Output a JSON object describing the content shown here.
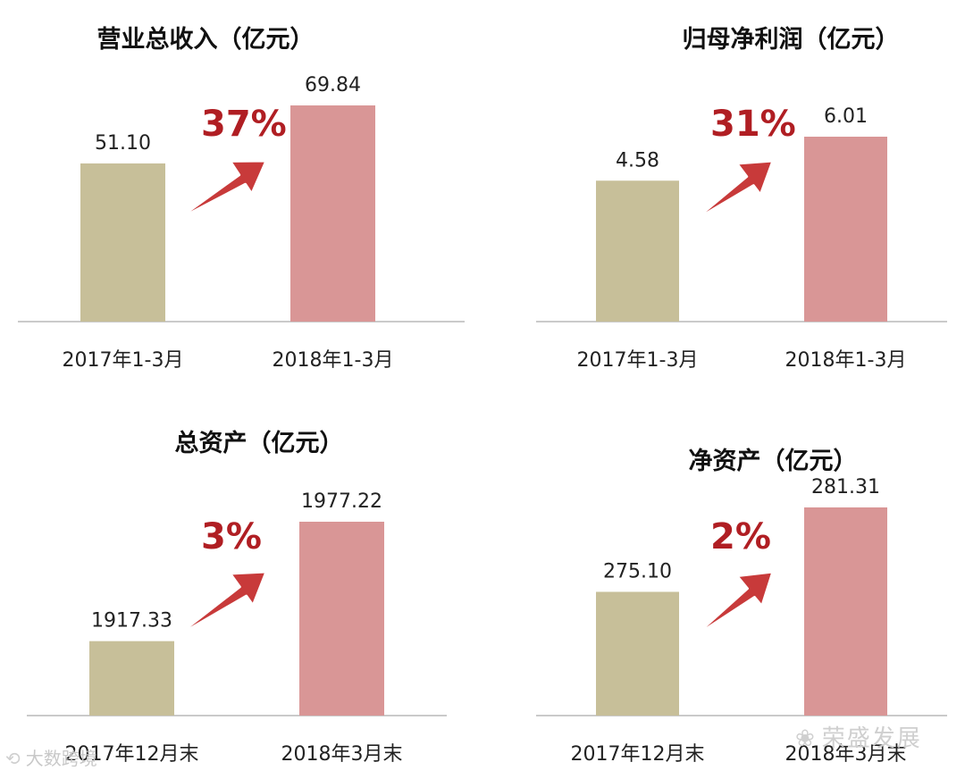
{
  "colors": {
    "bar_2017": "#c7bf99",
    "bar_2018": "#d99696",
    "growth_text": "#b01e23",
    "arrow_fill": "#c83a3a",
    "axis": "#b8b8b8"
  },
  "watermarks": {
    "left": "大数跨境",
    "right": "荣盛发展"
  },
  "chart_data": [
    {
      "type": "bar",
      "title": "营业总收入（亿元）",
      "categories": [
        "2017年1-3月",
        "2018年1-3月"
      ],
      "values": [
        51.1,
        69.84
      ],
      "value_labels": [
        "51.10",
        "69.84"
      ],
      "growth": "37%"
    },
    {
      "type": "bar",
      "title": "归母净利润（亿元）",
      "categories": [
        "2017年1-3月",
        "2018年1-3月"
      ],
      "values": [
        4.58,
        6.01
      ],
      "value_labels": [
        "4.58",
        "6.01"
      ],
      "growth": "31%"
    },
    {
      "type": "bar",
      "title": "总资产（亿元）",
      "categories": [
        "2017年12月末",
        "2018年3月末"
      ],
      "values": [
        1917.33,
        1977.22
      ],
      "value_labels": [
        "1917.33",
        "1977.22"
      ],
      "growth": "3%"
    },
    {
      "type": "bar",
      "title": "净资产（亿元）",
      "categories": [
        "2017年12月末",
        "2018年3月末"
      ],
      "values": [
        275.1,
        281.31
      ],
      "value_labels": [
        "275.10",
        "281.31"
      ],
      "growth": "2%"
    }
  ]
}
